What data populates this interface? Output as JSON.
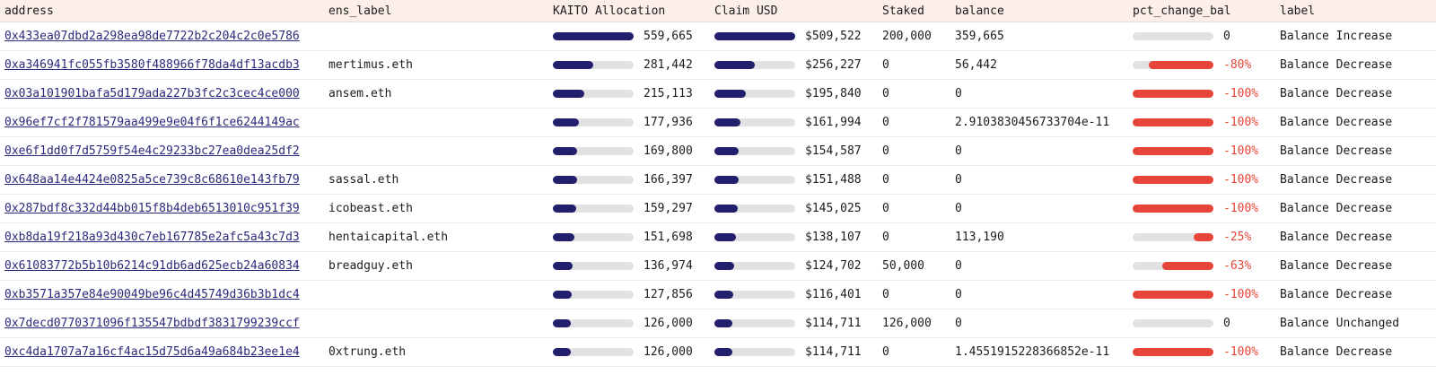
{
  "colors": {
    "allocation_bar": "#221f6c",
    "change_bar": "#e7453a",
    "track": "#e2e2e2",
    "header_bg": "#fcefe9",
    "negative_text": "#e7453a",
    "link": "#2b2a7c"
  },
  "columns": [
    "address",
    "ens_label",
    "KAITO Allocation",
    "Claim USD",
    "Staked",
    "balance",
    "pct_change_bal",
    "label"
  ],
  "rows": [
    {
      "address": "0x433ea07dbd2a298ea98de7722b2c204c2c0e5786",
      "ens_label": "",
      "kaito": "559,665",
      "kaito_ratio": 1.0,
      "claim": "$509,522",
      "claim_ratio": 1.0,
      "staked": "200,000",
      "balance": "359,665",
      "pct": "0",
      "pct_ratio": 0,
      "label": "Balance Increase"
    },
    {
      "address": "0xa346941fc055fb3580f488966f78da4df13acdb3",
      "ens_label": "mertimus.eth",
      "kaito": "281,442",
      "kaito_ratio": 0.503,
      "claim": "$256,227",
      "claim_ratio": 0.503,
      "staked": "0",
      "balance": "56,442",
      "pct": "-80%",
      "pct_ratio": 0.8,
      "label": "Balance Decrease"
    },
    {
      "address": "0x03a101901bafa5d179ada227b3fc2c3cec4ce000",
      "ens_label": "ansem.eth",
      "kaito": "215,113",
      "kaito_ratio": 0.384,
      "claim": "$195,840",
      "claim_ratio": 0.384,
      "staked": "0",
      "balance": "0",
      "pct": "-100%",
      "pct_ratio": 1.0,
      "label": "Balance Decrease"
    },
    {
      "address": "0x96ef7cf2f781579aa499e9e04f6f1ce6244149ac",
      "ens_label": "",
      "kaito": "177,936",
      "kaito_ratio": 0.318,
      "claim": "$161,994",
      "claim_ratio": 0.318,
      "staked": "0",
      "balance": "2.9103830456733704e-11",
      "pct": "-100%",
      "pct_ratio": 1.0,
      "label": "Balance Decrease"
    },
    {
      "address": "0xe6f1dd0f7d5759f54e4c29233bc27ea0dea25df2",
      "ens_label": "",
      "kaito": "169,800",
      "kaito_ratio": 0.303,
      "claim": "$154,587",
      "claim_ratio": 0.303,
      "staked": "0",
      "balance": "0",
      "pct": "-100%",
      "pct_ratio": 1.0,
      "label": "Balance Decrease"
    },
    {
      "address": "0x648aa14e4424e0825a5ce739c8c68610e143fb79",
      "ens_label": "sassal.eth",
      "kaito": "166,397",
      "kaito_ratio": 0.297,
      "claim": "$151,488",
      "claim_ratio": 0.297,
      "staked": "0",
      "balance": "0",
      "pct": "-100%",
      "pct_ratio": 1.0,
      "label": "Balance Decrease"
    },
    {
      "address": "0x287bdf8c332d44bb015f8b4deb6513010c951f39",
      "ens_label": "icobeast.eth",
      "kaito": "159,297",
      "kaito_ratio": 0.285,
      "claim": "$145,025",
      "claim_ratio": 0.285,
      "staked": "0",
      "balance": "0",
      "pct": "-100%",
      "pct_ratio": 1.0,
      "label": "Balance Decrease"
    },
    {
      "address": "0xb8da19f218a93d430c7eb167785e2afc5a43c7d3",
      "ens_label": "hentaicapital.eth",
      "kaito": "151,698",
      "kaito_ratio": 0.271,
      "claim": "$138,107",
      "claim_ratio": 0.271,
      "staked": "0",
      "balance": "113,190",
      "pct": "-25%",
      "pct_ratio": 0.25,
      "label": "Balance Decrease"
    },
    {
      "address": "0x61083772b5b10b6214c91db6ad625ecb24a60834",
      "ens_label": "breadguy.eth",
      "kaito": "136,974",
      "kaito_ratio": 0.245,
      "claim": "$124,702",
      "claim_ratio": 0.245,
      "staked": "50,000",
      "balance": "0",
      "pct": "-63%",
      "pct_ratio": 0.63,
      "label": "Balance Decrease"
    },
    {
      "address": "0xb3571a357e84e90049be96c4d45749d36b3b1dc4",
      "ens_label": "",
      "kaito": "127,856",
      "kaito_ratio": 0.228,
      "claim": "$116,401",
      "claim_ratio": 0.228,
      "staked": "0",
      "balance": "0",
      "pct": "-100%",
      "pct_ratio": 1.0,
      "label": "Balance Decrease"
    },
    {
      "address": "0x7decd0770371096f135547bdbdf3831799239ccf",
      "ens_label": "",
      "kaito": "126,000",
      "kaito_ratio": 0.225,
      "claim": "$114,711",
      "claim_ratio": 0.225,
      "staked": "126,000",
      "balance": "0",
      "pct": "0",
      "pct_ratio": 0,
      "label": "Balance Unchanged"
    },
    {
      "address": "0xc4da1707a7a16cf4ac15d75d6a49a684b23ee1e4",
      "ens_label": "0xtrung.eth",
      "kaito": "126,000",
      "kaito_ratio": 0.225,
      "claim": "$114,711",
      "claim_ratio": 0.225,
      "staked": "0",
      "balance": "1.4551915228366852e-11",
      "pct": "-100%",
      "pct_ratio": 1.0,
      "label": "Balance Decrease"
    }
  ]
}
